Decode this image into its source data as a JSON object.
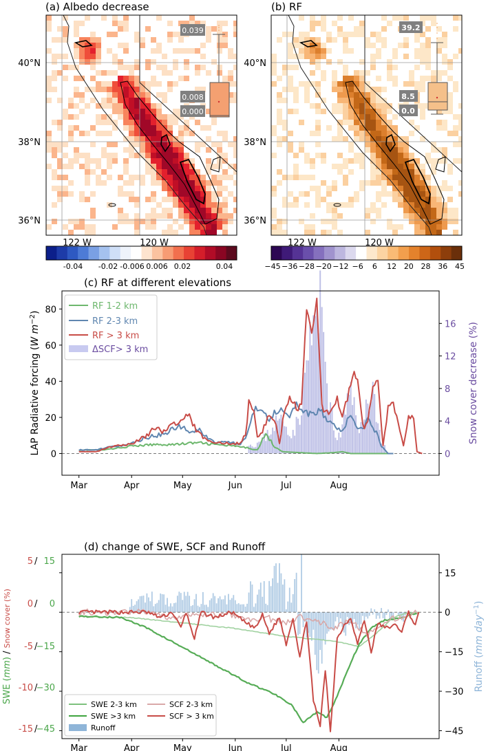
{
  "chart_data": [
    {
      "type": "heatmap",
      "panel": "a",
      "title": "(a) Albedo decrease",
      "lat_ticks": [
        "40°N",
        "38°N",
        "36°N"
      ],
      "lon_ticks": [
        "122  W",
        "120  W"
      ],
      "colorbar": {
        "ticks": [
          "-0.04",
          "-0.02",
          "-0.006",
          "0.006",
          "0.02",
          "0.04"
        ],
        "range": [
          -0.04,
          0.04
        ]
      },
      "boxplot": {
        "max_label": "0.039",
        "mean_label": "0.008",
        "median_label": "0.000"
      }
    },
    {
      "type": "heatmap",
      "panel": "b",
      "title": "(b) RF",
      "lat_ticks": [
        "40°N",
        "38°N",
        "36°N"
      ],
      "lon_ticks": [
        "122  W",
        "120  W"
      ],
      "colorbar": {
        "ticks": [
          "−45",
          "−36",
          "−28",
          "−20",
          "−12",
          "−6",
          "6",
          "12",
          "20",
          "28",
          "36",
          "45"
        ],
        "range": [
          -45,
          45
        ]
      },
      "boxplot": {
        "max_label": "39.2",
        "mean_label": "8.5",
        "median_label": "0.0"
      }
    },
    {
      "type": "line",
      "panel": "c",
      "title": "(c) RF at different elevations",
      "ylabel": "LAP Radiative forcing (W m⁻²)",
      "ylabel_right": "Snow cover decrease (%)",
      "months": [
        "Mar",
        "Apr",
        "May",
        "Jun",
        "Jul",
        "Aug"
      ],
      "ylim": [
        -12,
        90
      ],
      "yticks": [
        "0",
        "20",
        "40",
        "60",
        "80"
      ],
      "ylim_right": [
        -2.67,
        20
      ],
      "yticks_right": [
        "0",
        "4",
        "8",
        "12",
        "16"
      ],
      "legend": [
        "RF 1-2 km",
        "RF 2-3 km",
        "RF > 3 km",
        "ΔSCF> 3 km"
      ],
      "series_keys": [
        {
          "name": "RF 1-2 km",
          "color": "#6db76d",
          "points": [
            [
              0,
              2
            ],
            [
              15,
              2
            ],
            [
              30,
              4
            ],
            [
              45,
              5
            ],
            [
              55,
              5
            ],
            [
              70,
              6
            ],
            [
              80,
              5
            ],
            [
              92,
              4
            ],
            [
              100,
              3
            ],
            [
              105,
              2
            ],
            [
              110,
              11
            ],
            [
              115,
              4
            ],
            [
              120,
              1
            ],
            [
              130,
              0.5
            ],
            [
              140,
              0
            ],
            [
              150,
              0.5
            ],
            [
              155,
              1
            ],
            [
              160,
              0
            ],
            [
              185,
              0
            ]
          ]
        },
        {
          "name": "RF 2-3 km",
          "color": "#5f86b0",
          "points": [
            [
              0,
              2
            ],
            [
              10,
              2
            ],
            [
              20,
              4
            ],
            [
              30,
              5
            ],
            [
              40,
              9
            ],
            [
              50,
              11
            ],
            [
              60,
              15
            ],
            [
              65,
              12
            ],
            [
              70,
              14
            ],
            [
              75,
              9
            ],
            [
              80,
              6
            ],
            [
              90,
              6
            ],
            [
              95,
              5
            ],
            [
              98,
              8
            ],
            [
              100,
              15
            ],
            [
              104,
              26
            ],
            [
              108,
              22
            ],
            [
              112,
              19
            ],
            [
              116,
              23
            ],
            [
              120,
              24
            ],
            [
              125,
              21
            ],
            [
              128,
              28
            ],
            [
              134,
              22
            ],
            [
              138,
              21
            ],
            [
              142,
              24
            ],
            [
              146,
              19
            ],
            [
              150,
              15
            ],
            [
              155,
              12
            ],
            [
              160,
              22
            ],
            [
              165,
              13
            ],
            [
              170,
              18
            ],
            [
              175,
              12
            ],
            [
              178,
              4
            ],
            [
              182,
              0
            ],
            [
              185,
              0
            ]
          ]
        },
        {
          "name": "RF > 3 km",
          "color": "#c84b46",
          "points": [
            [
              0,
              1
            ],
            [
              10,
              1
            ],
            [
              20,
              4
            ],
            [
              30,
              5
            ],
            [
              40,
              10
            ],
            [
              45,
              15
            ],
            [
              50,
              12
            ],
            [
              55,
              16
            ],
            [
              60,
              18
            ],
            [
              64,
              22
            ],
            [
              68,
              15
            ],
            [
              72,
              10
            ],
            [
              78,
              6
            ],
            [
              85,
              6
            ],
            [
              90,
              5
            ],
            [
              95,
              6
            ],
            [
              98,
              10
            ],
            [
              100,
              28
            ],
            [
              103,
              22
            ],
            [
              105,
              10
            ],
            [
              108,
              12
            ],
            [
              112,
              22
            ],
            [
              116,
              16
            ],
            [
              118,
              5
            ],
            [
              121,
              24
            ],
            [
              124,
              32
            ],
            [
              128,
              25
            ],
            [
              131,
              27
            ],
            [
              134,
              80
            ],
            [
              137,
              68
            ],
            [
              140,
              84
            ],
            [
              143,
              26
            ],
            [
              146,
              22
            ],
            [
              149,
              24
            ],
            [
              152,
              30
            ],
            [
              155,
              19
            ],
            [
              158,
              31
            ],
            [
              161,
              44
            ],
            [
              164,
              43
            ],
            [
              167,
              15
            ],
            [
              170,
              16
            ],
            [
              173,
              37
            ],
            [
              176,
              40
            ],
            [
              179,
              5
            ],
            [
              182,
              26
            ],
            [
              185,
              28
            ],
            [
              188,
              18
            ],
            [
              191,
              4
            ],
            [
              194,
              20
            ],
            [
              197,
              20
            ],
            [
              199,
              1
            ],
            [
              202,
              0
            ]
          ]
        }
      ],
      "bars": {
        "name": "ΔSCF> 3 km",
        "color": "#aeb0e0"
      }
    },
    {
      "type": "line",
      "panel": "d",
      "title": "(d) change of SWE, SCF and Runoff",
      "ylabel": "SWE (mm) / Snow cover (%)",
      "ylabel_right": "Runoff (mm day⁻¹)",
      "months": [
        "Mar",
        "Apr",
        "May",
        "Jun",
        "Jul",
        "Aug"
      ],
      "yticks_left_scf": [
        "5",
        "0",
        "-5",
        "-10",
        "-15"
      ],
      "yticks_left_swe": [
        "15",
        "0",
        "−15",
        "−30",
        "−45"
      ],
      "yticks_right": [
        "15",
        "0",
        "−15",
        "−30",
        "−45"
      ],
      "ylim": [
        -48,
        22
      ],
      "legend": [
        "SWE 2-3 km",
        "SWE >3 km",
        "Runoff",
        "SCF 2-3 km",
        "SCF > 3 km"
      ]
    }
  ]
}
